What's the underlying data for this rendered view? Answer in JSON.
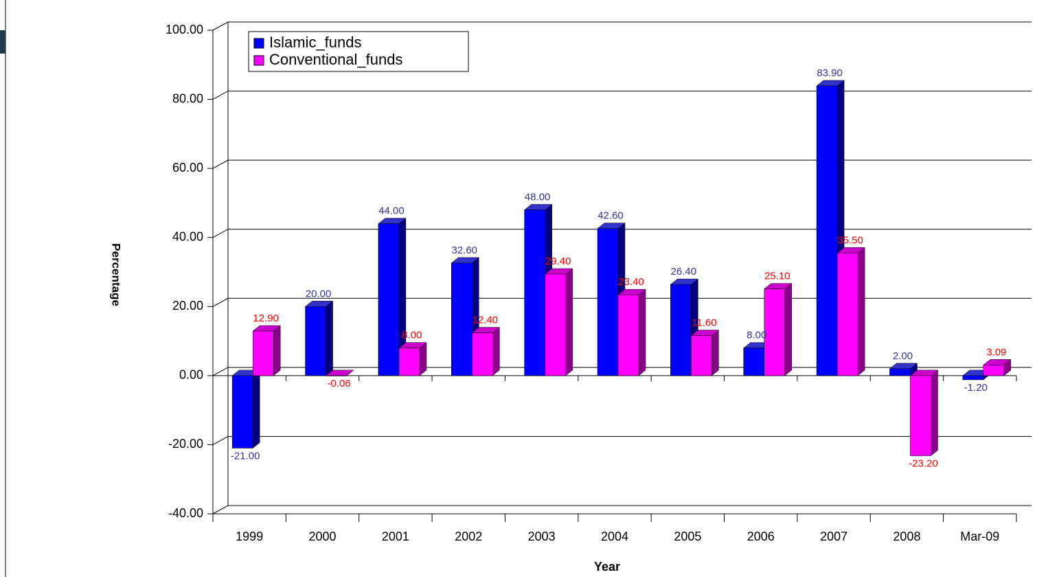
{
  "chart_data": {
    "type": "bar",
    "x_label": "Year",
    "y_label": "Percentage",
    "categories": [
      "1999",
      "2000",
      "2001",
      "2002",
      "2003",
      "2004",
      "2005",
      "2006",
      "2007",
      "2008",
      "Mar-09"
    ],
    "series": [
      {
        "name": "Islamic_funds",
        "color": "#0000ff",
        "values": [
          -21,
          20,
          44,
          32.6,
          48,
          42.6,
          26.4,
          8,
          83.9,
          2,
          -1.2
        ],
        "value_labels": [
          "-21.00",
          "20.00",
          "44.00",
          "32.60",
          "48.00",
          "42.60",
          "26.40",
          "8.00",
          "83.90",
          "2.00",
          "-1.20"
        ]
      },
      {
        "name": "Conventional_funds",
        "color": "#ff00ff",
        "values": [
          12.9,
          -0.06,
          8,
          12.4,
          29.4,
          23.4,
          11.6,
          25.1,
          35.5,
          -23.2,
          3.09
        ],
        "value_labels": [
          "12.90",
          "-0.06",
          "8.00",
          "12.40",
          "29.40",
          "23.40",
          "11.60",
          "25.10",
          "35.50",
          "-23.20",
          "3.09"
        ]
      }
    ],
    "ylim": [
      -40,
      100
    ],
    "yticks": [
      {
        "value": -40,
        "label": "-40.00"
      },
      {
        "value": -20,
        "label": "-20.00"
      },
      {
        "value": 0,
        "label": "0.00"
      },
      {
        "value": 20,
        "label": "20.00"
      },
      {
        "value": 40,
        "label": "40.00"
      },
      {
        "value": 60,
        "label": "60.00"
      },
      {
        "value": 80,
        "label": "80.00"
      },
      {
        "value": 100,
        "label": "100.00"
      }
    ],
    "grid": true,
    "legend": "upper left"
  }
}
